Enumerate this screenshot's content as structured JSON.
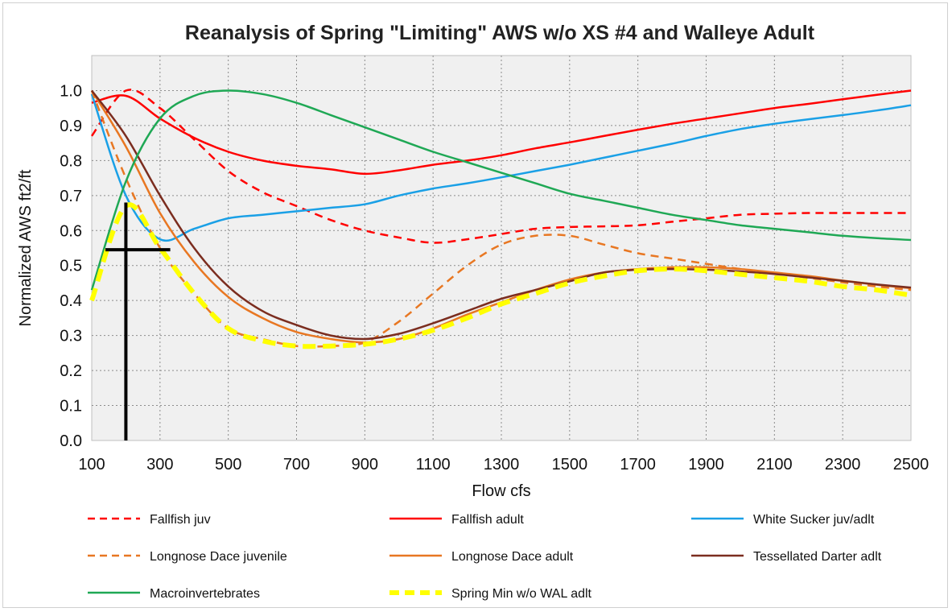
{
  "chart_data": {
    "type": "line",
    "title": "Reanalysis of Spring \"Limiting\" AWS w/o XS #4 and Walleye Adult",
    "xlabel": "Flow cfs",
    "ylabel": "Normalized AWS ft2/ft",
    "xlim": [
      100,
      2500
    ],
    "ylim": [
      0,
      1.1
    ],
    "x_ticks": [
      "100",
      "300",
      "500",
      "700",
      "900",
      "1100",
      "1300",
      "1500",
      "1700",
      "1900",
      "2100",
      "2300",
      "2500"
    ],
    "y_ticks": [
      "0.0",
      "0.1",
      "0.2",
      "0.3",
      "0.4",
      "0.5",
      "0.6",
      "0.7",
      "0.8",
      "0.9",
      "1.0"
    ],
    "grid": "dotted",
    "plot_background": "#f0f0f0",
    "legend_position": "bottom",
    "x": [
      100,
      200,
      300,
      400,
      500,
      600,
      700,
      800,
      900,
      1000,
      1100,
      1200,
      1300,
      1400,
      1500,
      1600,
      1700,
      1800,
      1900,
      2000,
      2100,
      2200,
      2300,
      2400,
      2500
    ],
    "series": [
      {
        "name": "Fallfish juv",
        "color": "#ff0000",
        "style": "dashed",
        "values": [
          0.87,
          1.0,
          0.95,
          0.86,
          0.77,
          0.71,
          0.67,
          0.63,
          0.6,
          0.58,
          0.565,
          0.575,
          0.59,
          0.605,
          0.61,
          0.612,
          0.615,
          0.625,
          0.635,
          0.645,
          0.648,
          0.65,
          0.65,
          0.65,
          0.65
        ]
      },
      {
        "name": "Fallfish adult",
        "color": "#ff0000",
        "style": "solid",
        "values": [
          0.965,
          0.985,
          0.92,
          0.865,
          0.825,
          0.8,
          0.785,
          0.775,
          0.762,
          0.772,
          0.788,
          0.8,
          0.815,
          0.835,
          0.852,
          0.87,
          0.888,
          0.905,
          0.92,
          0.935,
          0.95,
          0.962,
          0.975,
          0.988,
          1.0
        ]
      },
      {
        "name": "White Sucker juv/adlt",
        "color": "#1aa0e6",
        "style": "solid",
        "values": [
          0.99,
          0.7,
          0.575,
          0.605,
          0.635,
          0.645,
          0.655,
          0.665,
          0.675,
          0.7,
          0.72,
          0.735,
          0.752,
          0.77,
          0.788,
          0.808,
          0.828,
          0.848,
          0.87,
          0.89,
          0.905,
          0.918,
          0.93,
          0.943,
          0.958
        ]
      },
      {
        "name": "Longnose Dace juvenile",
        "color": "#e87722",
        "style": "dashed",
        "values": [
          1.0,
          0.75,
          0.55,
          0.42,
          0.32,
          0.29,
          0.27,
          0.27,
          0.28,
          0.34,
          0.42,
          0.5,
          0.56,
          0.585,
          0.585,
          0.56,
          0.535,
          0.52,
          0.505,
          0.49,
          0.478,
          0.465,
          0.452,
          0.44,
          0.43
        ]
      },
      {
        "name": "Longnose Dace adult",
        "color": "#e87722",
        "style": "solid",
        "values": [
          1.0,
          0.84,
          0.65,
          0.51,
          0.41,
          0.35,
          0.31,
          0.29,
          0.28,
          0.29,
          0.32,
          0.36,
          0.395,
          0.43,
          0.46,
          0.48,
          0.49,
          0.495,
          0.495,
          0.49,
          0.48,
          0.47,
          0.457,
          0.445,
          0.435
        ]
      },
      {
        "name": "Tessellated Darter adlt",
        "color": "#7b2d1f",
        "style": "solid",
        "values": [
          1.0,
          0.87,
          0.7,
          0.55,
          0.44,
          0.37,
          0.33,
          0.3,
          0.29,
          0.305,
          0.335,
          0.37,
          0.405,
          0.43,
          0.455,
          0.48,
          0.488,
          0.49,
          0.488,
          0.483,
          0.476,
          0.466,
          0.456,
          0.446,
          0.437
        ]
      },
      {
        "name": "Macroinvertebrates",
        "color": "#1fa855",
        "style": "solid",
        "values": [
          0.43,
          0.74,
          0.92,
          0.985,
          1.0,
          0.99,
          0.965,
          0.93,
          0.895,
          0.86,
          0.825,
          0.795,
          0.765,
          0.735,
          0.705,
          0.685,
          0.665,
          0.645,
          0.63,
          0.615,
          0.605,
          0.595,
          0.585,
          0.578,
          0.573
        ]
      },
      {
        "name": "Spring Min w/o WAL adlt",
        "color": "#ffff00",
        "style": "bold-dashed",
        "values": [
          0.4,
          0.67,
          0.55,
          0.42,
          0.32,
          0.285,
          0.27,
          0.27,
          0.275,
          0.29,
          0.315,
          0.35,
          0.39,
          0.42,
          0.45,
          0.47,
          0.485,
          0.49,
          0.485,
          0.475,
          0.465,
          0.455,
          0.44,
          0.43,
          0.415
        ]
      }
    ],
    "annotations": [
      {
        "type": "cross-marker",
        "color": "#000000",
        "x": 200,
        "y_from": 0.0,
        "y_to": 0.68,
        "h_y": 0.545,
        "h_x_from": 140,
        "h_x_to": 330
      }
    ]
  }
}
